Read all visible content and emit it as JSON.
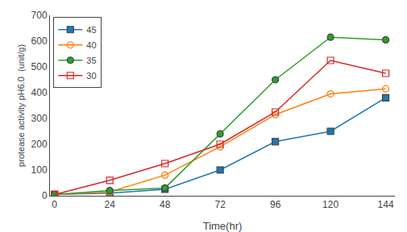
{
  "chart_data": {
    "type": "line",
    "x": [
      0,
      24,
      48,
      72,
      96,
      120,
      144
    ],
    "series": [
      {
        "name": "45",
        "values": [
          5,
          10,
          25,
          100,
          210,
          250,
          380
        ],
        "marker": "square",
        "line_style": "solid"
      },
      {
        "name": "40",
        "values": [
          5,
          15,
          80,
          190,
          315,
          395,
          415
        ],
        "marker": "circle-open",
        "line_style": "solid"
      },
      {
        "name": "35",
        "values": [
          5,
          20,
          30,
          240,
          450,
          615,
          605
        ],
        "marker": "circle",
        "line_style": "solid"
      },
      {
        "name": "30",
        "values": [
          5,
          60,
          125,
          200,
          325,
          525,
          475
        ],
        "marker": "square-open",
        "line_style": "solid"
      }
    ],
    "xlabel": "Time(hr)",
    "ylabel": "protease activity pH6.0  (unit/g)",
    "xlim": [
      -2,
      148
    ],
    "ylim": [
      0,
      700
    ],
    "xticks": [
      0,
      24,
      48,
      72,
      96,
      120,
      144
    ],
    "yticks": [
      0,
      100,
      200,
      300,
      400,
      500,
      600,
      700
    ],
    "legend": "upper left",
    "grid": false
  }
}
